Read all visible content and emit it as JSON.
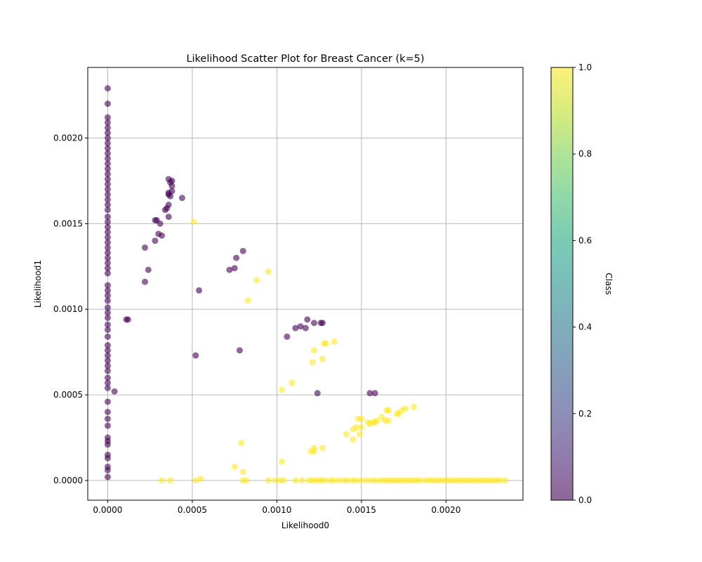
{
  "chart_data": {
    "type": "scatter",
    "title": "Likelihood Scatter Plot for Breast Cancer (k=5)",
    "xlabel": "Likelihood0",
    "ylabel": "Likelihood1",
    "xlim": [
      -0.000118,
      0.002455
    ],
    "ylim": [
      -0.000115,
      0.002412
    ],
    "xticks": [
      0,
      0.0005,
      0.001,
      0.0015,
      0.002
    ],
    "xtick_labels": [
      "0.0000",
      "0.0005",
      "0.0010",
      "0.0015",
      "0.0020"
    ],
    "yticks": [
      0,
      0.0005,
      0.001,
      0.0015,
      0.002
    ],
    "ytick_labels": [
      "0.0000",
      "0.0005",
      "0.0010",
      "0.0015",
      "0.0020"
    ],
    "grid": true,
    "marker_alpha": 0.6,
    "colorbar": {
      "label": "Class",
      "range": [
        0,
        1
      ],
      "ticks": [
        0,
        0.2,
        0.4,
        0.6,
        0.8,
        1
      ],
      "tick_labels": [
        "0.0",
        "0.2",
        "0.4",
        "0.6",
        "0.8",
        "1.0"
      ],
      "colormap": "viridis",
      "class_colors": {
        "0": "#440154",
        "1": "#fde725"
      }
    },
    "points": [
      {
        "x": 0,
        "y": 0.00229,
        "c": 0
      },
      {
        "x": 0,
        "y": 0.0022,
        "c": 0
      },
      {
        "x": 0,
        "y": 0.00212,
        "c": 0
      },
      {
        "x": 0,
        "y": 0.00209,
        "c": 0
      },
      {
        "x": 0,
        "y": 0.00206,
        "c": 0
      },
      {
        "x": 0,
        "y": 0.00203,
        "c": 0
      },
      {
        "x": 0,
        "y": 0.002,
        "c": 0
      },
      {
        "x": 0,
        "y": 0.00197,
        "c": 0
      },
      {
        "x": 0,
        "y": 0.00194,
        "c": 0
      },
      {
        "x": 0,
        "y": 0.00191,
        "c": 0
      },
      {
        "x": 0,
        "y": 0.00188,
        "c": 0
      },
      {
        "x": 0,
        "y": 0.00185,
        "c": 0
      },
      {
        "x": 0,
        "y": 0.00182,
        "c": 0
      },
      {
        "x": 0,
        "y": 0.00179,
        "c": 0
      },
      {
        "x": 0,
        "y": 0.00176,
        "c": 0
      },
      {
        "x": 0,
        "y": 0.00173,
        "c": 0
      },
      {
        "x": 0,
        "y": 0.0017,
        "c": 0
      },
      {
        "x": 0,
        "y": 0.00167,
        "c": 0
      },
      {
        "x": 0,
        "y": 0.00164,
        "c": 0
      },
      {
        "x": 0,
        "y": 0.00161,
        "c": 0
      },
      {
        "x": 0,
        "y": 0.00158,
        "c": 0
      },
      {
        "x": 0,
        "y": 0.00154,
        "c": 0
      },
      {
        "x": 0,
        "y": 0.00151,
        "c": 0
      },
      {
        "x": 0,
        "y": 0.00148,
        "c": 0
      },
      {
        "x": 0,
        "y": 0.00145,
        "c": 0
      },
      {
        "x": 0,
        "y": 0.00142,
        "c": 0
      },
      {
        "x": 0,
        "y": 0.00139,
        "c": 0
      },
      {
        "x": 0,
        "y": 0.00136,
        "c": 0
      },
      {
        "x": 0,
        "y": 0.00133,
        "c": 0
      },
      {
        "x": 0,
        "y": 0.0013,
        "c": 0
      },
      {
        "x": 0,
        "y": 0.00127,
        "c": 0
      },
      {
        "x": 0,
        "y": 0.00124,
        "c": 0
      },
      {
        "x": 0,
        "y": 0.00121,
        "c": 0
      },
      {
        "x": 0,
        "y": 0.00114,
        "c": 0
      },
      {
        "x": 0,
        "y": 0.00111,
        "c": 0
      },
      {
        "x": 0,
        "y": 0.00108,
        "c": 0
      },
      {
        "x": 0,
        "y": 0.00105,
        "c": 0
      },
      {
        "x": 0,
        "y": 0.00101,
        "c": 0
      },
      {
        "x": 0,
        "y": 0.00098,
        "c": 0
      },
      {
        "x": 0,
        "y": 0.00095,
        "c": 0
      },
      {
        "x": 0,
        "y": 0.00091,
        "c": 0
      },
      {
        "x": 0,
        "y": 0.00088,
        "c": 0
      },
      {
        "x": 0,
        "y": 0.00084,
        "c": 0
      },
      {
        "x": 0,
        "y": 0.00079,
        "c": 0
      },
      {
        "x": 0,
        "y": 0.00076,
        "c": 0
      },
      {
        "x": 0,
        "y": 0.00073,
        "c": 0
      },
      {
        "x": 0,
        "y": 0.0007,
        "c": 0
      },
      {
        "x": 0,
        "y": 0.00067,
        "c": 0
      },
      {
        "x": 0,
        "y": 0.00064,
        "c": 0
      },
      {
        "x": 0,
        "y": 0.0006,
        "c": 0
      },
      {
        "x": 0,
        "y": 0.00057,
        "c": 0
      },
      {
        "x": 0,
        "y": 0.00054,
        "c": 0
      },
      {
        "x": 0,
        "y": 0.00046,
        "c": 0
      },
      {
        "x": 0,
        "y": 0.0004,
        "c": 0
      },
      {
        "x": 0,
        "y": 0.00036,
        "c": 0
      },
      {
        "x": 0,
        "y": 0.00032,
        "c": 0
      },
      {
        "x": 0,
        "y": 0.00025,
        "c": 0
      },
      {
        "x": 0,
        "y": 0.00023,
        "c": 0
      },
      {
        "x": 0,
        "y": 0.00021,
        "c": 0
      },
      {
        "x": 0,
        "y": 0.00015,
        "c": 0
      },
      {
        "x": 0,
        "y": 0.00013,
        "c": 0
      },
      {
        "x": 0,
        "y": 8e-05,
        "c": 0
      },
      {
        "x": 0,
        "y": 6e-05,
        "c": 0
      },
      {
        "x": 0,
        "y": 2e-05,
        "c": 0
      },
      {
        "x": 4e-05,
        "y": 0.00052,
        "c": 0
      },
      {
        "x": 0.00011,
        "y": 0.00094,
        "c": 0
      },
      {
        "x": 0.00012,
        "y": 0.00094,
        "c": 0
      },
      {
        "x": 0.00022,
        "y": 0.00116,
        "c": 0
      },
      {
        "x": 0.00022,
        "y": 0.00136,
        "c": 0
      },
      {
        "x": 0.00024,
        "y": 0.00123,
        "c": 0
      },
      {
        "x": 0.00028,
        "y": 0.00152,
        "c": 0
      },
      {
        "x": 0.00029,
        "y": 0.00152,
        "c": 0
      },
      {
        "x": 0.00028,
        "y": 0.0014,
        "c": 0
      },
      {
        "x": 0.0003,
        "y": 0.00144,
        "c": 0
      },
      {
        "x": 0.00031,
        "y": 0.0015,
        "c": 0
      },
      {
        "x": 0.00032,
        "y": 0.00143,
        "c": 0
      },
      {
        "x": 0.00034,
        "y": 0.00158,
        "c": 0
      },
      {
        "x": 0.00035,
        "y": 0.00159,
        "c": 0
      },
      {
        "x": 0.00036,
        "y": 0.00161,
        "c": 0
      },
      {
        "x": 0.00036,
        "y": 0.00154,
        "c": 0
      },
      {
        "x": 0.00036,
        "y": 0.00167,
        "c": 0
      },
      {
        "x": 0.00036,
        "y": 0.00168,
        "c": 0
      },
      {
        "x": 0.00036,
        "y": 0.00176,
        "c": 0
      },
      {
        "x": 0.00037,
        "y": 0.00174,
        "c": 0
      },
      {
        "x": 0.00037,
        "y": 0.00166,
        "c": 0
      },
      {
        "x": 0.00038,
        "y": 0.00175,
        "c": 0
      },
      {
        "x": 0.00038,
        "y": 0.00172,
        "c": 0
      },
      {
        "x": 0.00038,
        "y": 0.00169,
        "c": 0
      },
      {
        "x": 0.00044,
        "y": 0.00165,
        "c": 0
      },
      {
        "x": 0.00052,
        "y": 0.00073,
        "c": 0
      },
      {
        "x": 0.00054,
        "y": 0.00111,
        "c": 0
      },
      {
        "x": 0.00072,
        "y": 0.00123,
        "c": 0
      },
      {
        "x": 0.00075,
        "y": 0.00124,
        "c": 0
      },
      {
        "x": 0.00076,
        "y": 0.0013,
        "c": 0
      },
      {
        "x": 0.00078,
        "y": 0.00076,
        "c": 0
      },
      {
        "x": 0.0008,
        "y": 0.00134,
        "c": 0
      },
      {
        "x": 0.00106,
        "y": 0.00084,
        "c": 0
      },
      {
        "x": 0.00111,
        "y": 0.00089,
        "c": 0
      },
      {
        "x": 0.00114,
        "y": 0.0009,
        "c": 0
      },
      {
        "x": 0.00117,
        "y": 0.00089,
        "c": 0
      },
      {
        "x": 0.00118,
        "y": 0.00094,
        "c": 0
      },
      {
        "x": 0.00122,
        "y": 0.00092,
        "c": 0
      },
      {
        "x": 0.00124,
        "y": 0.00051,
        "c": 0
      },
      {
        "x": 0.00126,
        "y": 0.00092,
        "c": 0
      },
      {
        "x": 0.00127,
        "y": 0.00092,
        "c": 0
      },
      {
        "x": 0.00155,
        "y": 0.00051,
        "c": 0
      },
      {
        "x": 0.00158,
        "y": 0.00051,
        "c": 0
      },
      {
        "x": 0.00051,
        "y": 0.00151,
        "c": 1
      },
      {
        "x": 0.00095,
        "y": 0.00122,
        "c": 1
      },
      {
        "x": 0.00088,
        "y": 0.00117,
        "c": 1
      },
      {
        "x": 0.00083,
        "y": 0.00105,
        "c": 1
      },
      {
        "x": 0.00134,
        "y": 0.00081,
        "c": 1
      },
      {
        "x": 0.00128,
        "y": 0.0008,
        "c": 1
      },
      {
        "x": 0.00129,
        "y": 0.0008,
        "c": 1
      },
      {
        "x": 0.00122,
        "y": 0.00076,
        "c": 1
      },
      {
        "x": 0.00127,
        "y": 0.00071,
        "c": 1
      },
      {
        "x": 0.00121,
        "y": 0.00069,
        "c": 1
      },
      {
        "x": 0.00109,
        "y": 0.00057,
        "c": 1
      },
      {
        "x": 0.00103,
        "y": 0.00053,
        "c": 1
      },
      {
        "x": 0.00181,
        "y": 0.00043,
        "c": 1
      },
      {
        "x": 0.00176,
        "y": 0.00042,
        "c": 1
      },
      {
        "x": 0.00174,
        "y": 0.00041,
        "c": 1
      },
      {
        "x": 0.00172,
        "y": 0.00039,
        "c": 1
      },
      {
        "x": 0.00171,
        "y": 0.00039,
        "c": 1
      },
      {
        "x": 0.00165,
        "y": 0.00041,
        "c": 1
      },
      {
        "x": 0.00166,
        "y": 0.00041,
        "c": 1
      },
      {
        "x": 0.00162,
        "y": 0.00037,
        "c": 1
      },
      {
        "x": 0.00164,
        "y": 0.00035,
        "c": 1
      },
      {
        "x": 0.00166,
        "y": 0.00035,
        "c": 1
      },
      {
        "x": 0.00159,
        "y": 0.00035,
        "c": 1
      },
      {
        "x": 0.00157,
        "y": 0.00034,
        "c": 1
      },
      {
        "x": 0.00155,
        "y": 0.00033,
        "c": 1
      },
      {
        "x": 0.00154,
        "y": 0.00034,
        "c": 1
      },
      {
        "x": 0.0015,
        "y": 0.00036,
        "c": 1
      },
      {
        "x": 0.00148,
        "y": 0.00036,
        "c": 1
      },
      {
        "x": 0.00147,
        "y": 0.00031,
        "c": 1
      },
      {
        "x": 0.00145,
        "y": 0.0003,
        "c": 1
      },
      {
        "x": 0.0015,
        "y": 0.00031,
        "c": 1
      },
      {
        "x": 0.00158,
        "y": 0.00034,
        "c": 1
      },
      {
        "x": 0.00141,
        "y": 0.00027,
        "c": 1
      },
      {
        "x": 0.00149,
        "y": 0.00027,
        "c": 1
      },
      {
        "x": 0.00145,
        "y": 0.00024,
        "c": 1
      },
      {
        "x": 0.00079,
        "y": 0.00022,
        "c": 1
      },
      {
        "x": 0.00122,
        "y": 0.00019,
        "c": 1
      },
      {
        "x": 0.00127,
        "y": 0.00019,
        "c": 1
      },
      {
        "x": 0.0012,
        "y": 0.00017,
        "c": 1
      },
      {
        "x": 0.00122,
        "y": 0.00017,
        "c": 1
      },
      {
        "x": 0.00103,
        "y": 0.00011,
        "c": 1
      },
      {
        "x": 0.00075,
        "y": 8e-05,
        "c": 1
      },
      {
        "x": 0.0008,
        "y": 5e-05,
        "c": 1
      },
      {
        "x": 0.00055,
        "y": 1e-05,
        "c": 1
      },
      {
        "x": 0.00032,
        "y": 0,
        "c": 1
      },
      {
        "x": 0.00037,
        "y": 0,
        "c": 1
      },
      {
        "x": 0.00052,
        "y": 0,
        "c": 1
      },
      {
        "x": 0.0008,
        "y": 0,
        "c": 1
      },
      {
        "x": 0.00082,
        "y": 0,
        "c": 1
      },
      {
        "x": 0.00095,
        "y": 0,
        "c": 1
      },
      {
        "x": 0.00099,
        "y": 0,
        "c": 1
      },
      {
        "x": 0.00102,
        "y": 0,
        "c": 1
      },
      {
        "x": 0.00104,
        "y": 0,
        "c": 1
      },
      {
        "x": 0.00111,
        "y": 0,
        "c": 1
      },
      {
        "x": 0.00115,
        "y": 0,
        "c": 1
      },
      {
        "x": 0.00119,
        "y": 0,
        "c": 1
      },
      {
        "x": 0.00121,
        "y": 0,
        "c": 1
      },
      {
        "x": 0.00123,
        "y": 0,
        "c": 1
      },
      {
        "x": 0.00125,
        "y": 0,
        "c": 1
      },
      {
        "x": 0.00127,
        "y": 0,
        "c": 1
      },
      {
        "x": 0.00129,
        "y": 0,
        "c": 1
      },
      {
        "x": 0.00132,
        "y": 0,
        "c": 1
      },
      {
        "x": 0.00134,
        "y": 0,
        "c": 1
      },
      {
        "x": 0.00137,
        "y": 0,
        "c": 1
      },
      {
        "x": 0.0014,
        "y": 0,
        "c": 1
      },
      {
        "x": 0.00142,
        "y": 0,
        "c": 1
      },
      {
        "x": 0.00145,
        "y": 0,
        "c": 1
      },
      {
        "x": 0.00147,
        "y": 0,
        "c": 1
      },
      {
        "x": 0.0015,
        "y": 0,
        "c": 1
      },
      {
        "x": 0.00153,
        "y": 0,
        "c": 1
      },
      {
        "x": 0.00156,
        "y": 0,
        "c": 1
      },
      {
        "x": 0.00158,
        "y": 0,
        "c": 1
      },
      {
        "x": 0.00161,
        "y": 0,
        "c": 1
      },
      {
        "x": 0.00163,
        "y": 0,
        "c": 1
      },
      {
        "x": 0.00165,
        "y": 0,
        "c": 1
      },
      {
        "x": 0.00167,
        "y": 0,
        "c": 1
      },
      {
        "x": 0.00169,
        "y": 0,
        "c": 1
      },
      {
        "x": 0.00171,
        "y": 0,
        "c": 1
      },
      {
        "x": 0.00173,
        "y": 0,
        "c": 1
      },
      {
        "x": 0.00175,
        "y": 0,
        "c": 1
      },
      {
        "x": 0.00177,
        "y": 0,
        "c": 1
      },
      {
        "x": 0.00179,
        "y": 0,
        "c": 1
      },
      {
        "x": 0.00181,
        "y": 0,
        "c": 1
      },
      {
        "x": 0.00183,
        "y": 0,
        "c": 1
      },
      {
        "x": 0.00185,
        "y": 0,
        "c": 1
      },
      {
        "x": 0.00188,
        "y": 0,
        "c": 1
      },
      {
        "x": 0.0019,
        "y": 0,
        "c": 1
      },
      {
        "x": 0.00192,
        "y": 0,
        "c": 1
      },
      {
        "x": 0.00194,
        "y": 0,
        "c": 1
      },
      {
        "x": 0.00196,
        "y": 0,
        "c": 1
      },
      {
        "x": 0.00198,
        "y": 0,
        "c": 1
      },
      {
        "x": 0.002,
        "y": 0,
        "c": 1
      },
      {
        "x": 0.00202,
        "y": 0,
        "c": 1
      },
      {
        "x": 0.00204,
        "y": 0,
        "c": 1
      },
      {
        "x": 0.00206,
        "y": 0,
        "c": 1
      },
      {
        "x": 0.00208,
        "y": 0,
        "c": 1
      },
      {
        "x": 0.0021,
        "y": 0,
        "c": 1
      },
      {
        "x": 0.00212,
        "y": 0,
        "c": 1
      },
      {
        "x": 0.00214,
        "y": 0,
        "c": 1
      },
      {
        "x": 0.00216,
        "y": 0,
        "c": 1
      },
      {
        "x": 0.00218,
        "y": 0,
        "c": 1
      },
      {
        "x": 0.0022,
        "y": 0,
        "c": 1
      },
      {
        "x": 0.00222,
        "y": 0,
        "c": 1
      },
      {
        "x": 0.00224,
        "y": 0,
        "c": 1
      },
      {
        "x": 0.00226,
        "y": 0,
        "c": 1
      },
      {
        "x": 0.00228,
        "y": 0,
        "c": 1
      },
      {
        "x": 0.0023,
        "y": 0,
        "c": 1
      },
      {
        "x": 0.00232,
        "y": 0,
        "c": 1
      },
      {
        "x": 0.00235,
        "y": 0,
        "c": 1
      }
    ]
  }
}
